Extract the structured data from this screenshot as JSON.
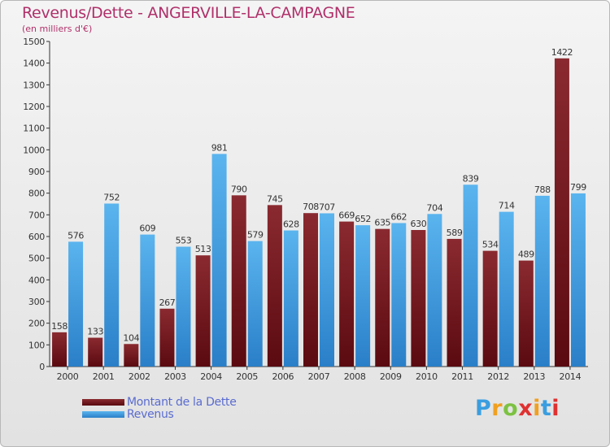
{
  "chart_data": {
    "type": "bar",
    "title": "Revenus/Dette - ANGERVILLE-LA-CAMPAGNE",
    "subtitle": "(en milliers d'€)",
    "categories": [
      "2000",
      "2001",
      "2002",
      "2003",
      "2004",
      "2005",
      "2006",
      "2007",
      "2008",
      "2009",
      "2010",
      "2011",
      "2012",
      "2013",
      "2014"
    ],
    "series": [
      {
        "name": "Montant de la Dette",
        "color": "#7a1a1f",
        "values": [
          158,
          133,
          104,
          267,
          513,
          790,
          745,
          708,
          669,
          635,
          630,
          589,
          534,
          489,
          1422
        ]
      },
      {
        "name": "Revenus",
        "color": "#4da6e6",
        "values": [
          576,
          752,
          609,
          553,
          981,
          579,
          628,
          707,
          652,
          662,
          704,
          839,
          714,
          788,
          799
        ]
      }
    ],
    "ylim": [
      0,
      1500
    ],
    "yticks": [
      0,
      100,
      200,
      300,
      400,
      500,
      600,
      700,
      800,
      900,
      1000,
      1100,
      1200,
      1300,
      1400,
      1500
    ],
    "grid": false,
    "legend": "bottom-left"
  },
  "logo": {
    "letters": [
      "P",
      "r",
      "o",
      "x",
      "i",
      "t",
      "i"
    ],
    "colors": [
      "#3a9ee0",
      "#f0a020",
      "#7cc242",
      "#e03030",
      "#f0a020",
      "#3a9ee0",
      "#e03030"
    ]
  }
}
